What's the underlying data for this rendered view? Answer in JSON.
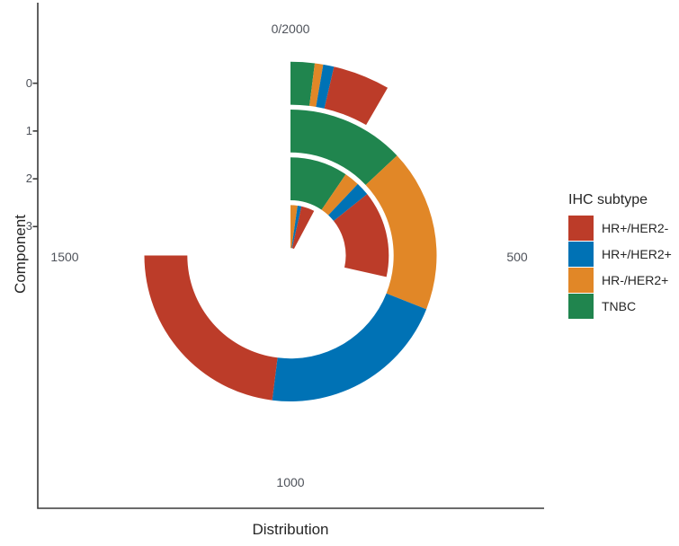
{
  "chart_data": {
    "type": "bar",
    "coord": "polar",
    "direction": "clockwise",
    "stacked": true,
    "title": "",
    "xlabel": "Distribution",
    "ylabel": "Component",
    "legend_title": "IHC subtype",
    "legend_position": "right",
    "grid": false,
    "axis_theta_max": 2000,
    "theta_ticks": [
      "0/2000",
      "500",
      "1000",
      "1500"
    ],
    "radial_ticks": [
      "0",
      "1",
      "2",
      "3"
    ],
    "categories": [
      "0",
      "1",
      "2",
      "3"
    ],
    "series": [
      {
        "name": "HR+/HER2-",
        "color": "#BC3C29",
        "values": [
          95,
          460,
          285,
          85
        ]
      },
      {
        "name": "HR+/HER2+",
        "color": "#0072B5",
        "values": [
          18,
          420,
          45,
          25
        ]
      },
      {
        "name": "HR-/HER2+",
        "color": "#E18727",
        "values": [
          14,
          360,
          50,
          45
        ]
      },
      {
        "name": "TNBC",
        "color": "#20854E",
        "values": [
          40,
          260,
          190,
          0
        ]
      }
    ],
    "stack_order": [
      "TNBC",
      "HR-/HER2+",
      "HR+/HER2+",
      "HR+/HER2-"
    ],
    "component_totals": [
      167,
      1500,
      570,
      155
    ]
  }
}
